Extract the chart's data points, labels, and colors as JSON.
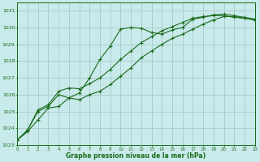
{
  "bg_color": "#c8eaea",
  "grid_color": "#a8caca",
  "line_color": "#1a6b1a",
  "xmin": 0,
  "xmax": 23,
  "ymin": 1023,
  "ymax": 1031.5,
  "series": [
    [
      1023.3,
      1023.8,
      1024.5,
      1025.2,
      1025.3,
      1025.8,
      1026.1,
      1027.0,
      1028.1,
      1028.9,
      1029.9,
      1030.0,
      1029.95,
      1029.7,
      1029.6,
      1029.85,
      1030.0,
      1030.5,
      1030.6,
      1030.75,
      1030.8,
      1030.7,
      1030.6,
      1030.5
    ],
    [
      1023.3,
      1023.9,
      1025.0,
      1025.3,
      1026.0,
      1025.8,
      1025.7,
      1026.0,
      1026.2,
      1026.6,
      1027.1,
      1027.6,
      1028.2,
      1028.6,
      1029.0,
      1029.35,
      1029.6,
      1029.9,
      1030.2,
      1030.45,
      1030.65,
      1030.65,
      1030.55,
      1030.45
    ],
    [
      1023.3,
      1023.9,
      1025.1,
      1025.4,
      1026.2,
      1026.4,
      1026.35,
      1026.65,
      1027.0,
      1027.5,
      1028.1,
      1028.6,
      1029.1,
      1029.45,
      1029.8,
      1030.05,
      1030.3,
      1030.55,
      1030.65,
      1030.7,
      1030.7,
      1030.6,
      1030.55,
      1030.45
    ]
  ],
  "xlabel": "Graphe pression niveau de la mer (hPa)",
  "yticks": [
    1023,
    1024,
    1025,
    1026,
    1027,
    1028,
    1029,
    1030,
    1031
  ],
  "xticks": [
    0,
    1,
    2,
    3,
    4,
    5,
    6,
    7,
    8,
    9,
    10,
    11,
    12,
    13,
    14,
    15,
    16,
    17,
    18,
    19,
    20,
    21,
    22,
    23
  ]
}
